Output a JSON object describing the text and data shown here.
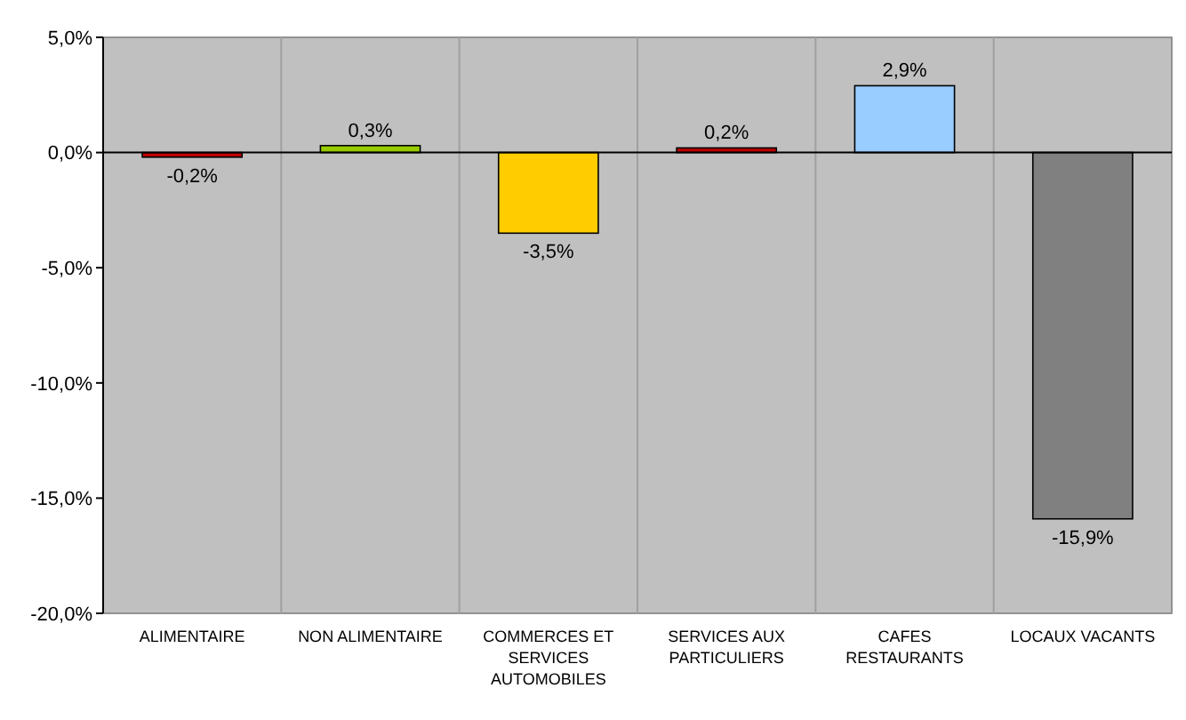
{
  "chart_data": {
    "type": "bar",
    "categories": [
      "ALIMENTAIRE",
      "NON ALIMENTAIRE",
      "COMMERCES ET SERVICES AUTOMOBILES",
      "SERVICES AUX PARTICULIERS",
      "CAFES RESTAURANTS",
      "LOCAUX VACANTS"
    ],
    "values": [
      -0.2,
      0.3,
      -3.5,
      0.2,
      2.9,
      -15.9
    ],
    "colors": [
      "#c00000",
      "#99cc00",
      "#ffcc00",
      "#c00000",
      "#99ccff",
      "#808080"
    ],
    "value_labels": [
      "-0,2%",
      "0,3%",
      "-3,5%",
      "0,2%",
      "2,9%",
      "-15,9%"
    ],
    "ylim": [
      -20,
      5
    ],
    "yticks": [
      {
        "value": -20,
        "label": "-20,0%"
      },
      {
        "value": -15,
        "label": "-15,0%"
      },
      {
        "value": -10,
        "label": "-10,0%"
      },
      {
        "value": -5,
        "label": "-5,0%"
      },
      {
        "value": 0,
        "label": "0,0%"
      },
      {
        "value": 5,
        "label": "5,0%"
      }
    ],
    "grid": "x"
  }
}
